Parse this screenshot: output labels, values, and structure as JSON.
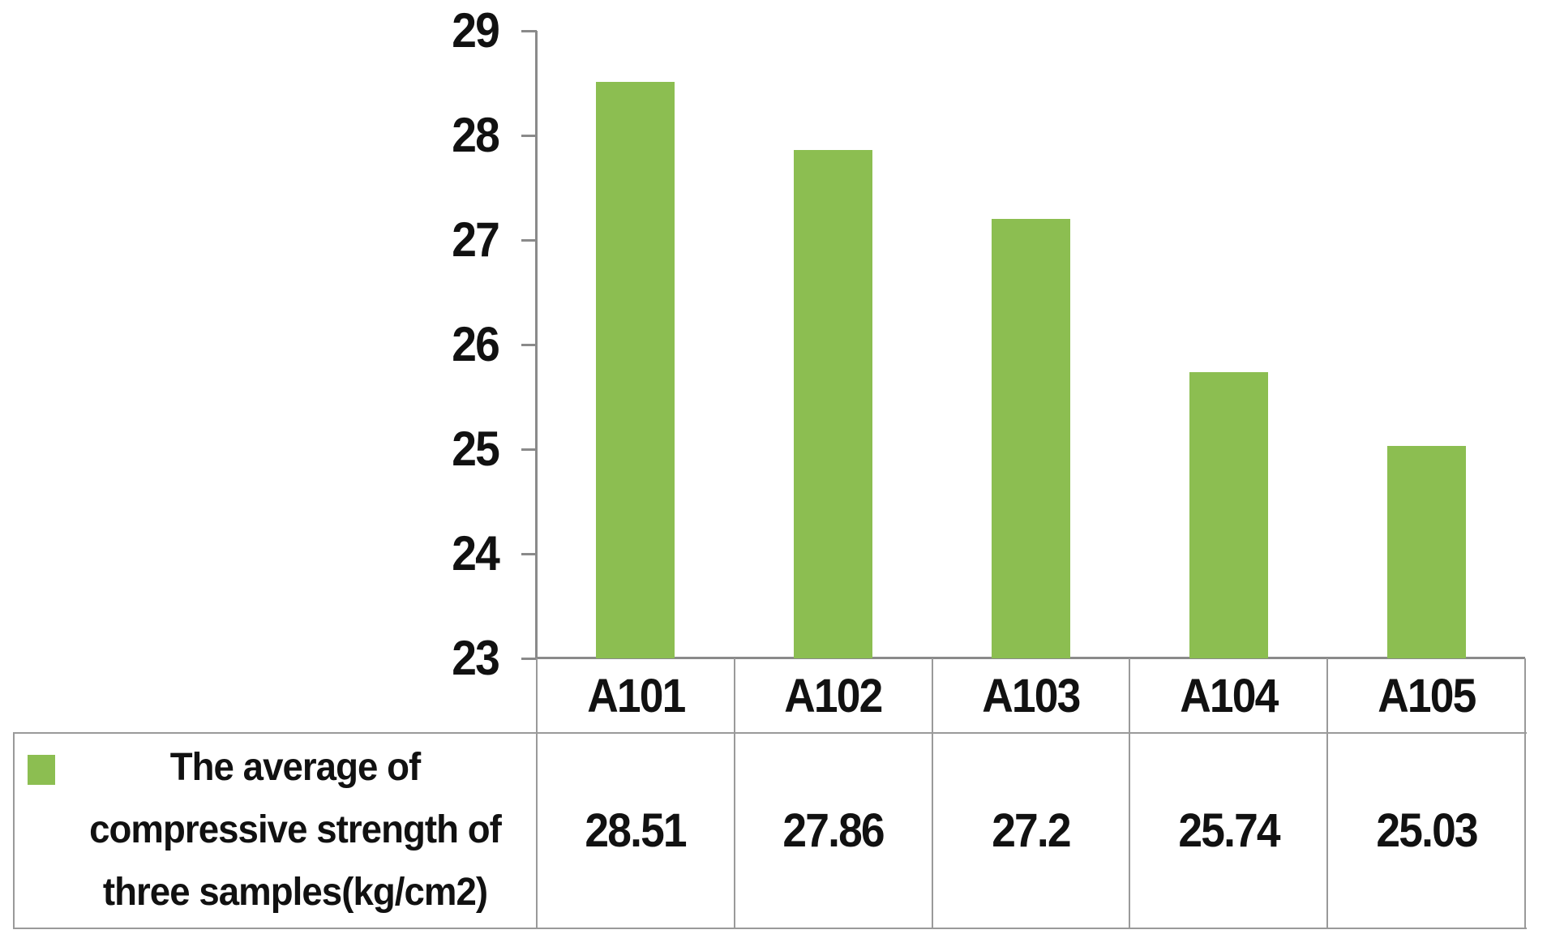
{
  "chart_data": {
    "type": "bar",
    "title": "",
    "categories": [
      "A101",
      "A102",
      "A103",
      "A104",
      "A105"
    ],
    "series": [
      {
        "name": "The average of compressive strength of three samples(kg/cm2)",
        "values": [
          28.51,
          27.86,
          27.2,
          25.74,
          25.03
        ]
      }
    ],
    "xlabel": "",
    "ylabel": "",
    "ylim": [
      23,
      29
    ],
    "yticks": [
      "23",
      "24",
      "25",
      "26",
      "27",
      "28",
      "29"
    ],
    "grid": false,
    "legend_position": "bottom-table-left",
    "data_table_shown": true
  },
  "table": {
    "header_row": [
      "A101",
      "A102",
      "A103",
      "A104",
      "A105"
    ],
    "value_row": [
      "28.51",
      "27.86",
      "27.2",
      "25.74",
      "25.03"
    ],
    "legend": {
      "lines": [
        "The average of",
        "compressive strength of",
        "three samples(kg/cm2)"
      ]
    }
  },
  "colors": {
    "bar": "#8CBE51",
    "legend_marker": "#8CBE51",
    "border": "#9A9A9A",
    "axis": "#8A8A8A",
    "text": "#111111",
    "background": "#FFFFFF"
  }
}
